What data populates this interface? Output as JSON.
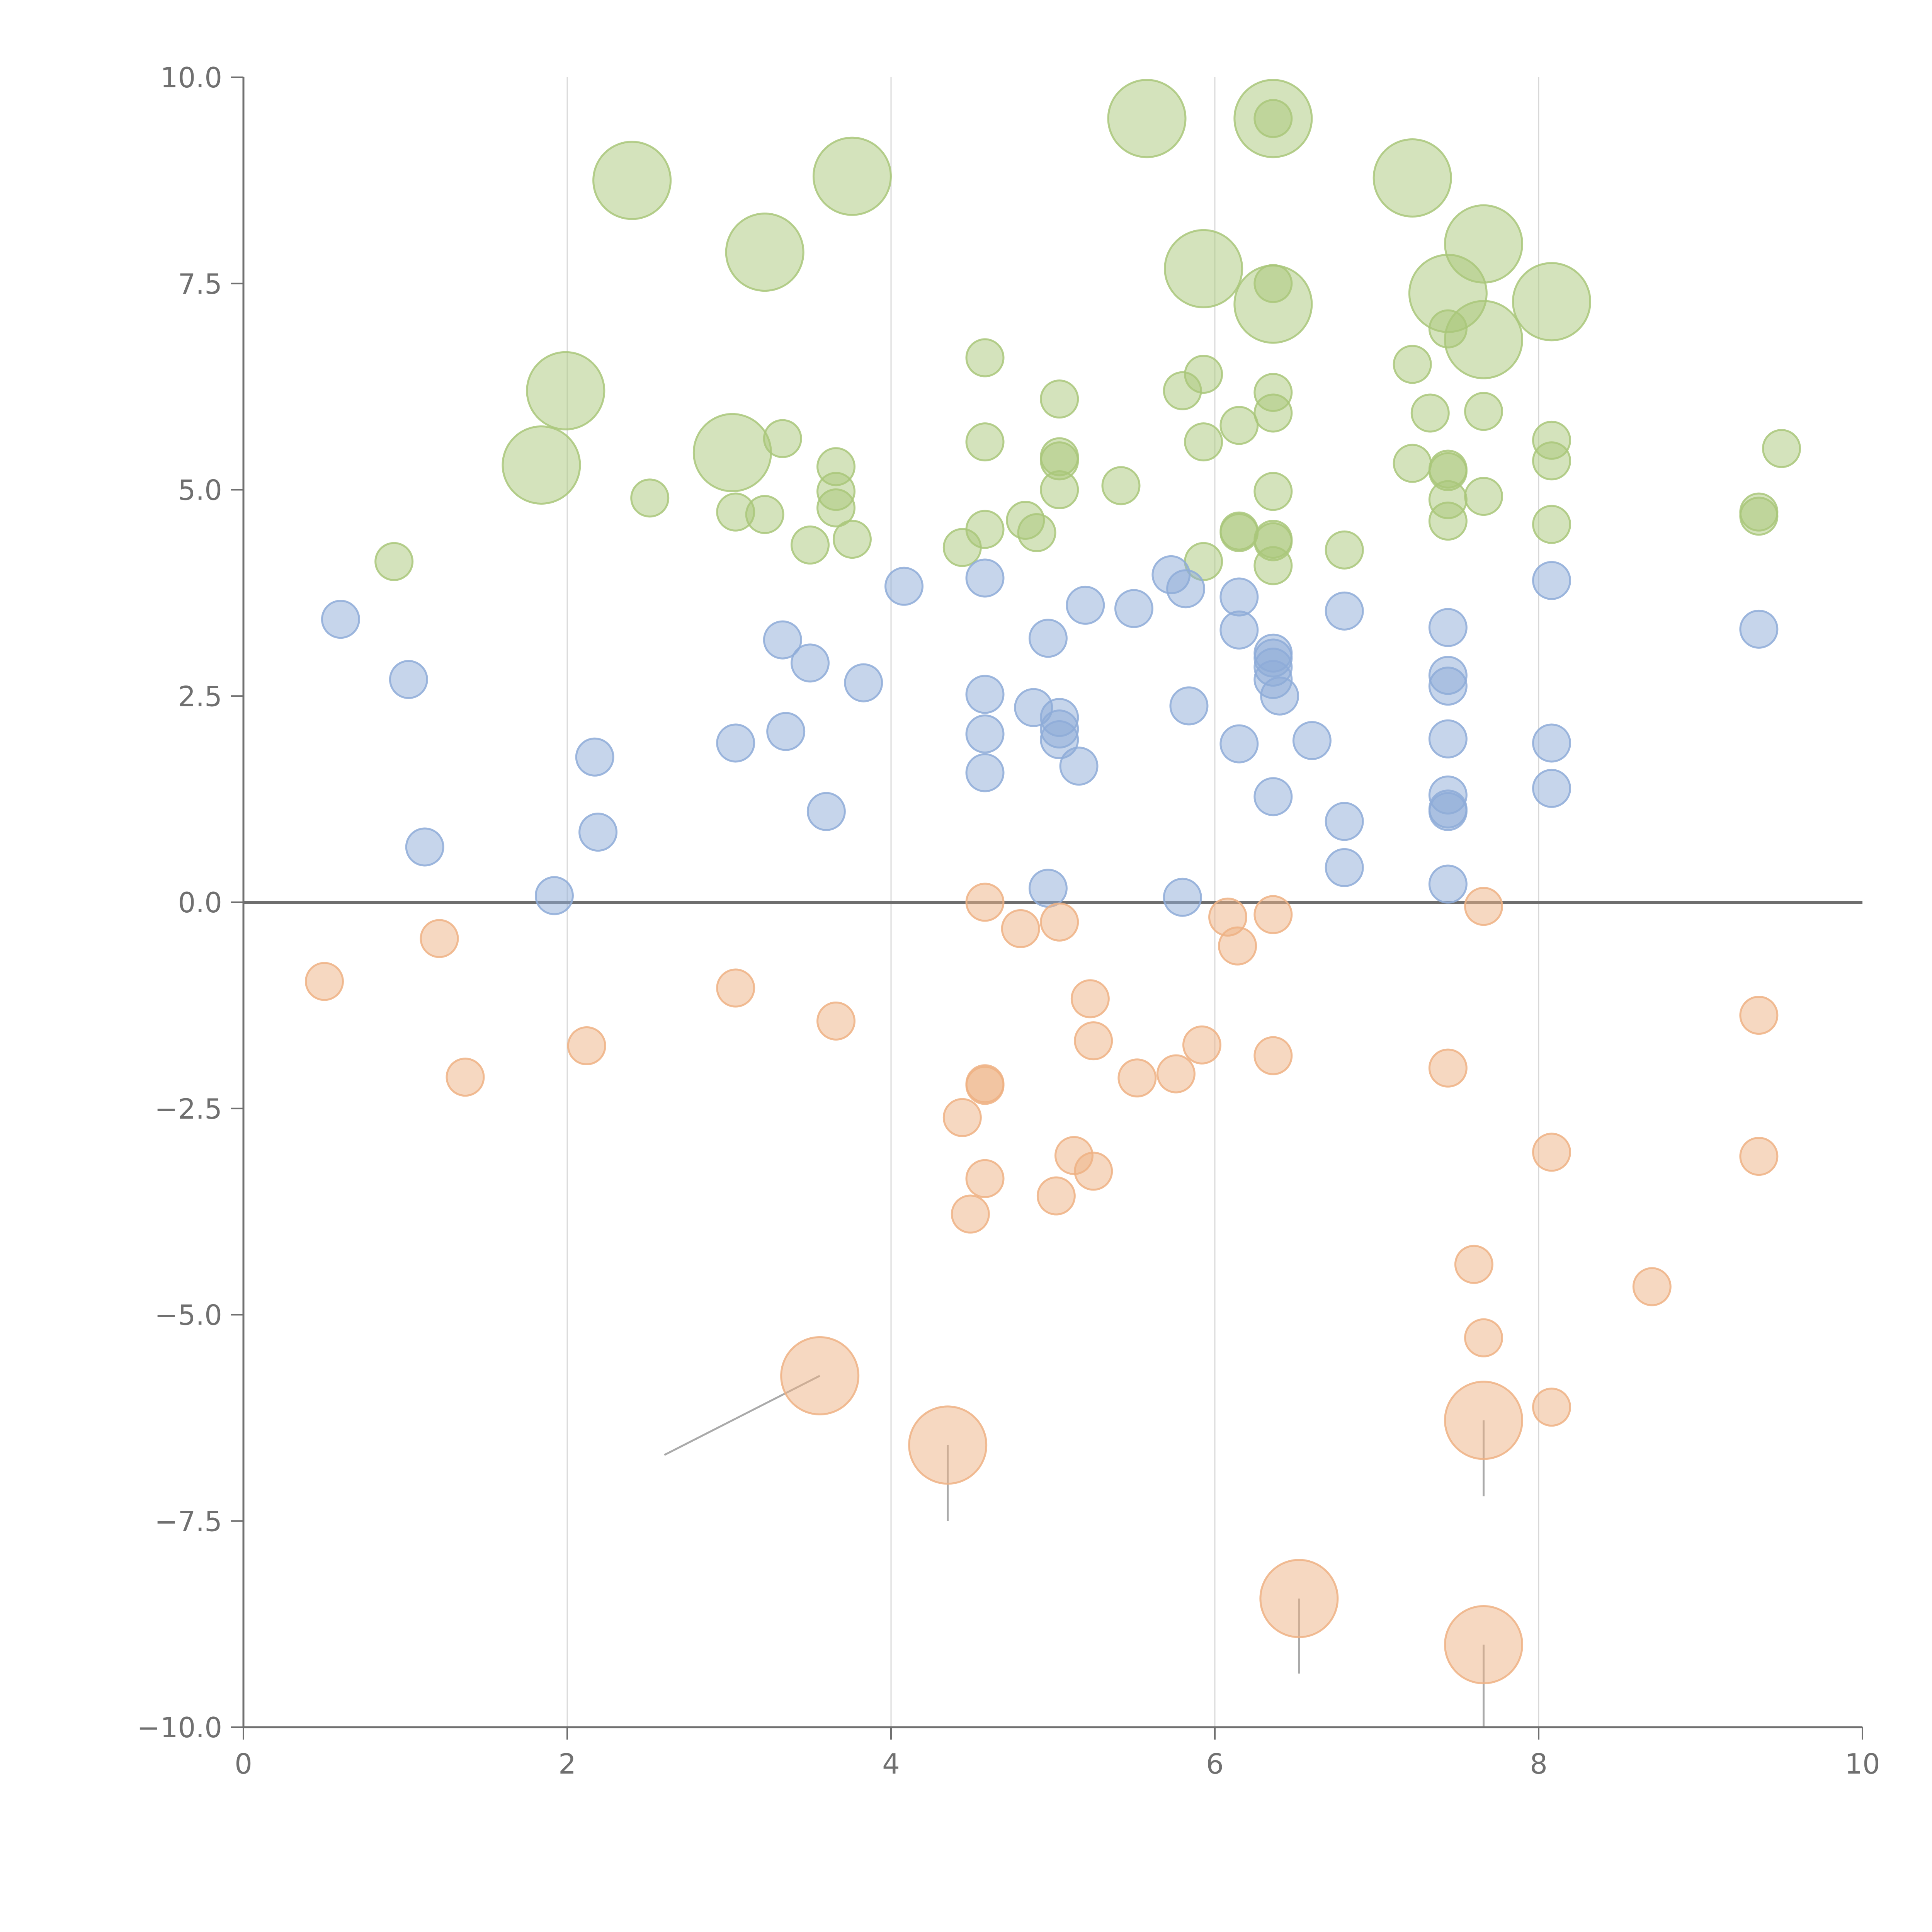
{
  "chart_data": {
    "type": "scatter",
    "title": "",
    "xlabel": "",
    "ylabel": "",
    "xlim": [
      0,
      10
    ],
    "ylim": [
      -10,
      10
    ],
    "xticks": [
      "0",
      "2",
      "4",
      "6",
      "8",
      "10"
    ],
    "yticks": [
      "−10.0",
      "−7.5",
      "−5.0",
      "−2.5",
      "0.0",
      "2.5",
      "5.0",
      "7.5",
      "10.0"
    ],
    "grid_x": [
      2,
      4,
      6,
      8
    ],
    "zero_line": 0,
    "series": [
      {
        "name": "green",
        "color": "#a9c77a",
        "points": [
          [
            2.4,
            8.75,
            2
          ],
          [
            3.76,
            8.8,
            2
          ],
          [
            5.58,
            9.5,
            2
          ],
          [
            6.36,
            9.5,
            2
          ],
          [
            6.36,
            9.5,
            1
          ],
          [
            7.22,
            8.78,
            2
          ],
          [
            3.22,
            7.88,
            2
          ],
          [
            5.93,
            7.68,
            2
          ],
          [
            6.36,
            7.25,
            2
          ],
          [
            6.36,
            7.5,
            1
          ],
          [
            7.66,
            7.98,
            2
          ],
          [
            7.44,
            7.38,
            2
          ],
          [
            7.66,
            6.82,
            2
          ],
          [
            8.08,
            7.28,
            2
          ],
          [
            7.44,
            6.95,
            1
          ],
          [
            1.99,
            6.2,
            2
          ],
          [
            1.84,
            5.3,
            2
          ],
          [
            3.02,
            5.45,
            2
          ],
          [
            4.58,
            6.6,
            1
          ],
          [
            5.93,
            6.4,
            1
          ],
          [
            5.8,
            6.2,
            1
          ],
          [
            5.04,
            6.1,
            1
          ],
          [
            6.36,
            6.18,
            1
          ],
          [
            6.36,
            5.93,
            1
          ],
          [
            7.22,
            6.52,
            1
          ],
          [
            7.33,
            5.93,
            1
          ],
          [
            7.66,
            5.95,
            1
          ],
          [
            6.15,
            5.78,
            1
          ],
          [
            5.93,
            5.58,
            1
          ],
          [
            4.58,
            5.58,
            1
          ],
          [
            3.33,
            5.62,
            1
          ],
          [
            3.66,
            5.28,
            1
          ],
          [
            3.66,
            4.98,
            1
          ],
          [
            3.66,
            4.78,
            1
          ],
          [
            2.51,
            4.9,
            1
          ],
          [
            3.04,
            4.73,
            1
          ],
          [
            3.22,
            4.7,
            1
          ],
          [
            3.5,
            4.33,
            1
          ],
          [
            3.76,
            4.4,
            1
          ],
          [
            0.93,
            4.13,
            1
          ],
          [
            4.44,
            4.3,
            1
          ],
          [
            4.58,
            4.52,
            1
          ],
          [
            4.83,
            4.63,
            1
          ],
          [
            4.9,
            4.48,
            1
          ],
          [
            5.04,
            5.4,
            1
          ],
          [
            5.04,
            5.35,
            1
          ],
          [
            5.04,
            5.0,
            1
          ],
          [
            5.42,
            5.05,
            1
          ],
          [
            5.93,
            4.13,
            1
          ],
          [
            6.15,
            4.5,
            1
          ],
          [
            6.15,
            4.48,
            1
          ],
          [
            6.36,
            4.98,
            1
          ],
          [
            6.36,
            4.4,
            1
          ],
          [
            6.36,
            4.37,
            1
          ],
          [
            6.36,
            4.08,
            1
          ],
          [
            6.8,
            4.27,
            1
          ],
          [
            7.22,
            5.32,
            1
          ],
          [
            7.44,
            5.25,
            1
          ],
          [
            7.44,
            5.22,
            1
          ],
          [
            7.44,
            4.88,
            1
          ],
          [
            7.44,
            4.62,
            1
          ],
          [
            7.66,
            4.92,
            1
          ],
          [
            8.08,
            5.6,
            1
          ],
          [
            8.08,
            5.35,
            1
          ],
          [
            8.08,
            4.58,
            1
          ],
          [
            9.36,
            4.73,
            1
          ],
          [
            9.36,
            4.68,
            1
          ],
          [
            9.5,
            5.5,
            1
          ]
        ]
      },
      {
        "name": "blue",
        "color": "#8eabd8",
        "points": [
          [
            0.6,
            3.43,
            1
          ],
          [
            1.02,
            2.7,
            1
          ],
          [
            1.12,
            0.67,
            1
          ],
          [
            1.92,
            0.08,
            1
          ],
          [
            2.17,
            1.76,
            1
          ],
          [
            2.19,
            0.85,
            1
          ],
          [
            3.04,
            1.93,
            1
          ],
          [
            3.33,
            3.18,
            1
          ],
          [
            3.35,
            2.07,
            1
          ],
          [
            3.5,
            2.9,
            1
          ],
          [
            3.6,
            1.1,
            1
          ],
          [
            3.83,
            2.66,
            1
          ],
          [
            4.08,
            3.83,
            1
          ],
          [
            4.58,
            3.93,
            1
          ],
          [
            4.58,
            2.52,
            1
          ],
          [
            4.58,
            2.04,
            1
          ],
          [
            4.58,
            1.57,
            1
          ],
          [
            4.88,
            2.36,
            1
          ],
          [
            4.97,
            3.2,
            1
          ],
          [
            4.97,
            0.17,
            1
          ],
          [
            5.04,
            2.24,
            1
          ],
          [
            5.04,
            2.1,
            1
          ],
          [
            5.04,
            1.97,
            1
          ],
          [
            5.16,
            1.65,
            1
          ],
          [
            5.2,
            3.6,
            1
          ],
          [
            5.5,
            3.56,
            1
          ],
          [
            5.73,
            3.97,
            1
          ],
          [
            5.82,
            3.8,
            1
          ],
          [
            5.84,
            2.38,
            1
          ],
          [
            5.8,
            0.06,
            1
          ],
          [
            6.15,
            3.7,
            1
          ],
          [
            6.15,
            3.3,
            1
          ],
          [
            6.15,
            1.92,
            1
          ],
          [
            6.36,
            3.02,
            1
          ],
          [
            6.36,
            2.96,
            1
          ],
          [
            6.36,
            2.85,
            1
          ],
          [
            6.36,
            2.7,
            1
          ],
          [
            6.4,
            2.5,
            1
          ],
          [
            6.36,
            1.28,
            1
          ],
          [
            6.6,
            1.96,
            1
          ],
          [
            6.8,
            3.53,
            1
          ],
          [
            6.8,
            0.98,
            1
          ],
          [
            6.8,
            0.42,
            1
          ],
          [
            7.44,
            3.33,
            1
          ],
          [
            7.44,
            2.75,
            1
          ],
          [
            7.44,
            2.62,
            1
          ],
          [
            7.44,
            1.98,
            1
          ],
          [
            7.44,
            1.3,
            1
          ],
          [
            7.44,
            1.13,
            1
          ],
          [
            7.44,
            1.1,
            1
          ],
          [
            7.44,
            0.22,
            1
          ],
          [
            8.08,
            3.9,
            1
          ],
          [
            8.08,
            1.93,
            1
          ],
          [
            8.08,
            1.38,
            1
          ],
          [
            9.36,
            3.31,
            1
          ]
        ]
      },
      {
        "name": "orange",
        "color": "#eeb184",
        "points": [
          [
            0.5,
            -0.96,
            1
          ],
          [
            1.21,
            -0.44,
            1
          ],
          [
            1.37,
            -2.12,
            1
          ],
          [
            2.12,
            -1.74,
            1
          ],
          [
            3.04,
            -1.04,
            1
          ],
          [
            3.66,
            -1.44,
            1
          ],
          [
            4.44,
            -2.61,
            1
          ],
          [
            4.49,
            -3.78,
            1
          ],
          [
            4.58,
            0.0,
            1
          ],
          [
            4.58,
            -2.2,
            1
          ],
          [
            4.58,
            -2.22,
            1
          ],
          [
            4.58,
            -3.35,
            1
          ],
          [
            4.8,
            -0.32,
            1
          ],
          [
            5.02,
            -3.56,
            1
          ],
          [
            5.04,
            -0.24,
            1
          ],
          [
            5.13,
            -3.07,
            1
          ],
          [
            5.23,
            -1.17,
            1
          ],
          [
            5.25,
            -1.68,
            1
          ],
          [
            5.25,
            -3.26,
            1
          ],
          [
            5.52,
            -2.13,
            1
          ],
          [
            5.76,
            -2.08,
            1
          ],
          [
            5.92,
            -1.73,
            1
          ],
          [
            6.08,
            -0.18,
            1
          ],
          [
            6.14,
            -0.53,
            1
          ],
          [
            6.36,
            -0.15,
            1
          ],
          [
            6.36,
            -1.86,
            1
          ],
          [
            7.44,
            -2.01,
            1
          ],
          [
            7.6,
            -4.39,
            1
          ],
          [
            7.66,
            -0.05,
            1
          ],
          [
            7.66,
            -5.28,
            1
          ],
          [
            8.08,
            -3.03,
            1
          ],
          [
            8.08,
            -6.12,
            1
          ],
          [
            8.7,
            -4.66,
            1
          ],
          [
            9.36,
            -1.37,
            1
          ],
          [
            9.36,
            -3.08,
            1
          ],
          [
            3.56,
            -5.74,
            2
          ],
          [
            4.35,
            -6.58,
            2
          ],
          [
            7.66,
            -6.28,
            2
          ],
          [
            6.52,
            -8.44,
            2
          ],
          [
            7.66,
            -9.0,
            2
          ]
        ]
      }
    ],
    "leaders": [
      [
        3.56,
        -5.74,
        2.6,
        -6.7
      ],
      [
        4.35,
        -6.58,
        4.35,
        -7.5
      ],
      [
        7.66,
        -6.28,
        7.66,
        -7.2
      ],
      [
        6.52,
        -8.44,
        6.52,
        -9.35
      ],
      [
        7.66,
        -9.0,
        7.66,
        -10.0
      ]
    ]
  }
}
